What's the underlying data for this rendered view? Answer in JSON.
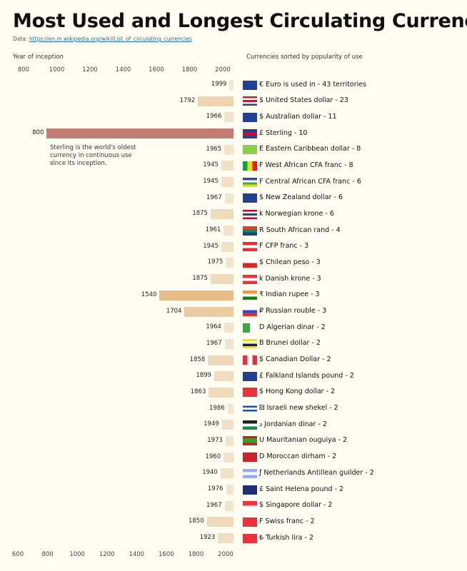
{
  "title": "Most Used and Longest Circulating Currencies",
  "source": {
    "prefix": "Data: ",
    "link": "https://en.m.wikipedia.org/wiki/List_of_circulating_currencies"
  },
  "left_header": "Year of inception",
  "right_header": "Currencies sorted by popularity of use",
  "note": "Sterling is the world's oldest currency in continuous use since its inception.",
  "colors": {
    "background": "#fffcf1",
    "sterling_bar": "#c27c74",
    "new_bar": "#f3e6d0",
    "old_bar": "#e6bd88"
  },
  "chart_data": {
    "type": "bar",
    "orientation": "horizontal",
    "xlabel": "Year of inception",
    "top_ticks": [
      800,
      1000,
      1200,
      1400,
      1600,
      1800,
      2000
    ],
    "bottom_ticks": [
      600,
      800,
      1000,
      1200,
      1400,
      1600,
      1800,
      2000
    ],
    "rows": [
      {
        "year": 1999,
        "label": "€ Euro is used in - 43 territories",
        "flag": [
          "#1f3f99"
        ]
      },
      {
        "year": 1792,
        "label": "$ United States dollar - 23",
        "flag": [
          "#b22234",
          "#ffffff",
          "#b22234",
          "#ffffff",
          "#3c3b6e"
        ]
      },
      {
        "year": 1966,
        "label": "$ Australian dollar - 11",
        "flag": [
          "#233f8f"
        ]
      },
      {
        "year": 800,
        "label": "£ Sterling - 10",
        "flag": [
          "#2a3f8c",
          "#c8102e",
          "#2a3f8c"
        ],
        "highlight": true
      },
      {
        "year": 1965,
        "label": "E Eastern Caribbean dollar - 8",
        "flag": [
          "#8ccf4a"
        ]
      },
      {
        "year": 1945,
        "label": "F West African CFA franc - 8",
        "flag": [
          "#14a03c",
          "#f7d618",
          "#e31b23"
        ],
        "vertical": true
      },
      {
        "year": 1945,
        "label": "F Central African CFA franc - 6",
        "flag": [
          "#2b4fa0",
          "#ffffff",
          "#3aa845",
          "#f7d618"
        ]
      },
      {
        "year": 1967,
        "label": "$ New Zealand dollar - 6",
        "flag": [
          "#233f8f"
        ]
      },
      {
        "year": 1875,
        "label": "k Norwegian krone - 6",
        "flag": [
          "#ba0c2f",
          "#ffffff",
          "#2b3f8f",
          "#ffffff",
          "#ba0c2f"
        ]
      },
      {
        "year": 1961,
        "label": "R South African rand - 4",
        "flag": [
          "#e03c31",
          "#1a8a4a",
          "#223c8a"
        ]
      },
      {
        "year": 1945,
        "label": "F CFP franc - 3",
        "flag": [
          "#ed2939",
          "#ffffff",
          "#ed2939"
        ]
      },
      {
        "year": 1975,
        "label": "$ Chilean peso - 3",
        "flag": [
          "#ffffff",
          "#d52b1e"
        ]
      },
      {
        "year": 1875,
        "label": "k Danish krone - 3",
        "flag": [
          "#e8323c",
          "#ffffff",
          "#e8323c"
        ]
      },
      {
        "year": 1540,
        "label": "₹ Indian rupee - 3",
        "flag": [
          "#f49a33",
          "#ffffff",
          "#138808"
        ]
      },
      {
        "year": 1704,
        "label": "₽ Russian rouble - 3",
        "flag": [
          "#ffffff",
          "#2a4bd0",
          "#e0322b"
        ]
      },
      {
        "year": 1964,
        "label": "D Algerian dinar - 2",
        "flag": [
          "#3aa845",
          "#ffffff"
        ],
        "vertical": true
      },
      {
        "year": 1967,
        "label": "B Brunei dollar - 2",
        "flag": [
          "#f7e01a",
          "#ffffff",
          "#222222",
          "#f7e01a"
        ]
      },
      {
        "year": 1858,
        "label": "$ Canadian Dollar - 2",
        "flag": [
          "#e0323c",
          "#ffffff",
          "#e0323c"
        ],
        "vertical": true
      },
      {
        "year": 1899,
        "label": "£ Falkland Islands pound - 2",
        "flag": [
          "#233f8f"
        ]
      },
      {
        "year": 1863,
        "label": "$ Hong Kong dollar - 2",
        "flag": [
          "#e8323c"
        ]
      },
      {
        "year": 1986,
        "label": "₪ Israeli new shekel - 2",
        "flag": [
          "#ffffff",
          "#1f4fa8",
          "#ffffff",
          "#1f4fa8",
          "#ffffff"
        ]
      },
      {
        "year": 1949,
        "label": "د Jordanian dinar - 2",
        "flag": [
          "#222222",
          "#ffffff",
          "#1a8a4a"
        ]
      },
      {
        "year": 1973,
        "label": "U Mauritanian ouguiya - 2",
        "flag": [
          "#d01c1f",
          "#3a9a2a",
          "#3a9a2a",
          "#d01c1f"
        ]
      },
      {
        "year": 1960,
        "label": "D Moroccan dirham - 2",
        "flag": [
          "#c1272d"
        ]
      },
      {
        "year": 1940,
        "label": "ƒ Netherlands Antillean guilder - 2",
        "flag": [
          "#8fb0f0",
          "#ffffff",
          "#8fb0f0"
        ]
      },
      {
        "year": 1976,
        "label": "£ Saint Helena pound - 2",
        "flag": [
          "#1f2f6f"
        ]
      },
      {
        "year": 1967,
        "label": "$ Singapore dollar - 2",
        "flag": [
          "#ef3340",
          "#ffffff"
        ]
      },
      {
        "year": 1850,
        "label": "F Swiss franc - 2",
        "flag": [
          "#e8323c"
        ]
      },
      {
        "year": 1923,
        "label": "₺ Turkish lira - 2",
        "flag": [
          "#e8323c"
        ]
      }
    ]
  }
}
